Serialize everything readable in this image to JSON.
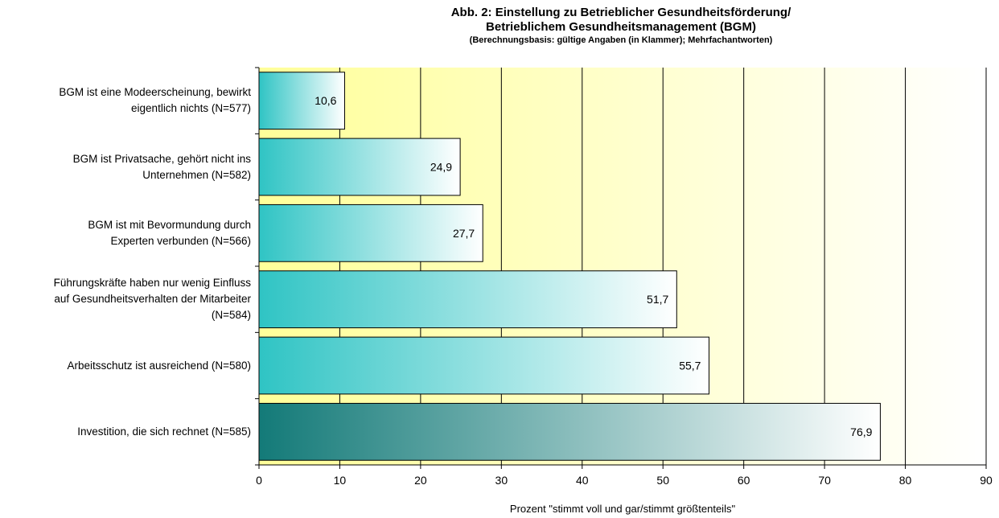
{
  "chart_data": {
    "type": "bar",
    "orientation": "horizontal",
    "title": "Abb. 2: Einstellung zu Betrieblicher Gesundheitsförderung/",
    "title_line2": "Betrieblichem Gesundheitsmanagement (BGM)",
    "subtitle": "(Berechnungsbasis: gültige Angaben (in Klammer); Mehrfachantworten)",
    "xlabel": "Prozent \"stimmt voll und gar/stimmt größtenteils\"",
    "ylabel": "",
    "xlim": [
      0,
      90
    ],
    "x_ticks": [
      0,
      10,
      20,
      30,
      40,
      50,
      60,
      70,
      80,
      90
    ],
    "grid": "vertical",
    "categories": [
      [
        "BGM ist eine Modeerscheinung, bewirkt",
        "eigentlich nichts (N=577)"
      ],
      [
        "BGM ist Privatsache, gehört nicht ins",
        "Unternehmen (N=582)"
      ],
      [
        "BGM ist mit Bevormundung durch",
        "Experten verbunden (N=566)"
      ],
      [
        "Führungskräfte haben nur wenig Einfluss",
        "auf Gesundheitsverhalten der Mitarbeiter",
        "(N=584)"
      ],
      [
        "Arbeitsschutz ist ausreichend (N=580)"
      ],
      [
        "Investition, die sich rechnet (N=585)"
      ]
    ],
    "values": [
      10.6,
      24.9,
      27.7,
      51.7,
      55.7,
      76.9
    ],
    "value_labels": [
      "10,6",
      "24,9",
      "27,7",
      "51,7",
      "55,7",
      "76,9"
    ],
    "colors": {
      "bar_start": "#2fc4c4",
      "bar_end": "#ffffff",
      "highlight_start": "#137a78",
      "highlight_end": "#ffffff",
      "plot_background_start": "#ffff99",
      "plot_background_end": "#ffffff"
    }
  }
}
